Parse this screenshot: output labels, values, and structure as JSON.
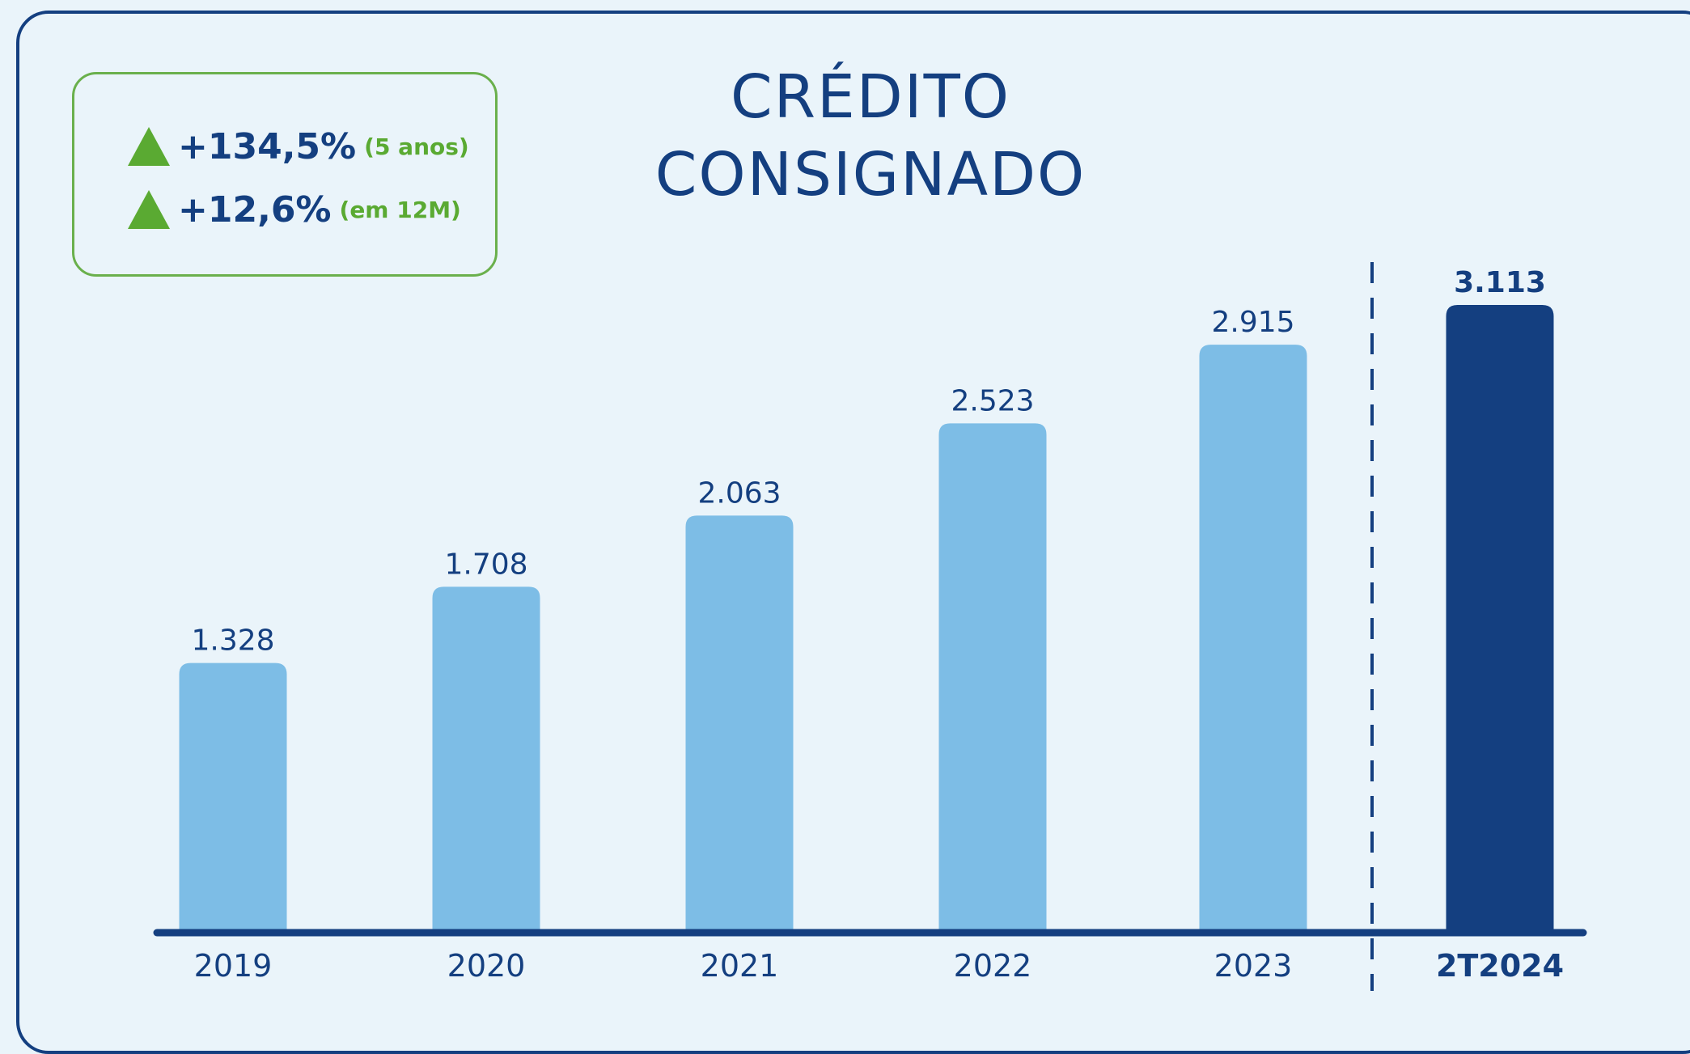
{
  "chart_data": {
    "type": "bar",
    "title": "CRÉDITO CONSIGNADO",
    "annotations": [
      {
        "text": "+134,5%",
        "note": "(5 anos)"
      },
      {
        "text": "+12,6%",
        "note": "(em 12M)"
      }
    ],
    "categories": [
      "2019",
      "2020",
      "2021",
      "2022",
      "2023",
      "2T2024"
    ],
    "values": [
      1328,
      1708,
      2063,
      2523,
      2915,
      3113
    ],
    "value_labels": [
      "1.328",
      "1.708",
      "2.063",
      "2.523",
      "2.915",
      "3.113"
    ],
    "colors": [
      "#7dbde6",
      "#7dbde6",
      "#7dbde6",
      "#7dbde6",
      "#7dbde6",
      "#143f80"
    ]
  }
}
